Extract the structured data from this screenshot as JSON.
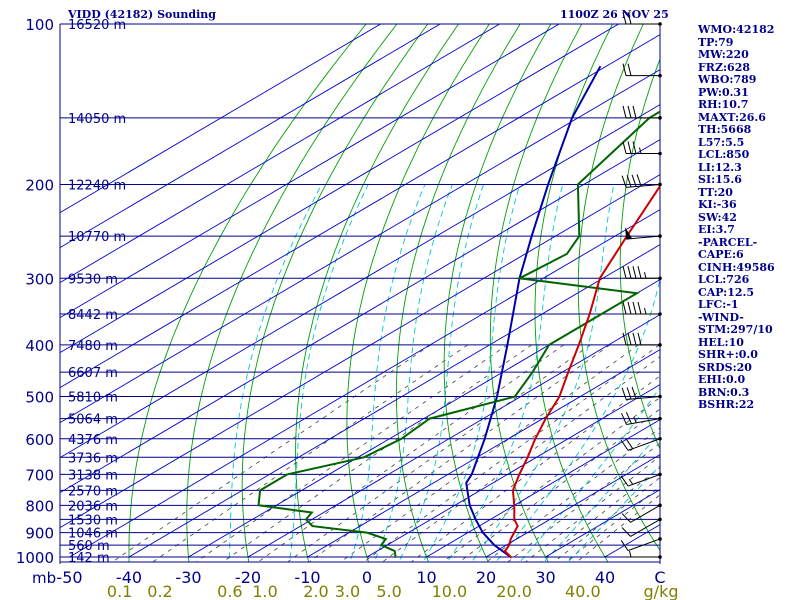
{
  "header": {
    "station_title": "VIDD (42182) Sounding",
    "valid_time": "1100Z 26 NOV 25"
  },
  "indices": [
    "WMO:42182",
    "TP:79",
    "MW:220",
    "FRZ:628",
    "WBO:789",
    "PW:0.31",
    "RH:10.7",
    "MAXT:26.6",
    "TH:5668",
    "L57:5.5",
    "LCL:850",
    "LI:12.3",
    "SI:15.6",
    "TT:20",
    "KI:-36",
    "SW:42",
    "EI:3.7",
    "-PARCEL-",
    "CAPE:6",
    "CINH:49586",
    "LCL:726",
    "CAP:12.5",
    "LFC:-1",
    "-WIND-",
    "STM:297/10",
    "HEL:10",
    "SHR+:0.0",
    "SRDS:20",
    "EHI:0.0",
    "BRN:0.3",
    "BSHR:22"
  ],
  "colors": {
    "isobar": "#00008b",
    "isotherm": "#0000cd",
    "dry_adiabat": "#00a000",
    "moist_adiabat": "#00c8c8",
    "mixing_ratio": "#404040",
    "temperature": "#cc0000",
    "dewpoint": "#006400",
    "parcel": "#0000aa",
    "text": "#00008b",
    "mixing_label": "#808000"
  },
  "chart_data": {
    "type": "skew-t",
    "pressure_levels": [
      100,
      200,
      300,
      400,
      500,
      600,
      700,
      800,
      900,
      1000
    ],
    "pressure_labels": [
      "100",
      "200",
      "300",
      "400",
      "500",
      "600",
      "700",
      "800",
      "900",
      "1000"
    ],
    "pressure_unit": "mb",
    "x_ticks": [
      "-50",
      "-40",
      "-30",
      "-20",
      "-10",
      "0",
      "10",
      "20",
      "30",
      "40",
      "C"
    ],
    "mixing_ratio_unit": "g/kg",
    "mixing_ratio_labels": [
      {
        "text": "0.1",
        "value": 0.1
      },
      {
        "text": "0.2",
        "value": 0.2
      },
      {
        "text": "0.6",
        "value": 0.6
      },
      {
        "text": "1.0",
        "value": 1.0
      },
      {
        "text": "2.0",
        "value": 2.0
      },
      {
        "text": "3.0",
        "value": 3.0
      },
      {
        "text": "5.0",
        "value": 5.0
      },
      {
        "text": "10.0",
        "value": 10.0
      },
      {
        "text": "20.0",
        "value": 20.0
      },
      {
        "text": "40.0",
        "value": 40.0
      }
    ],
    "height_labels": [
      {
        "p": 100,
        "text": "16520 m"
      },
      {
        "p": 150,
        "text": "14050 m"
      },
      {
        "p": 200,
        "text": "12240 m"
      },
      {
        "p": 250,
        "text": "10770 m"
      },
      {
        "p": 300,
        "text": "9530 m"
      },
      {
        "p": 350,
        "text": "8442 m"
      },
      {
        "p": 400,
        "text": "7480 m"
      },
      {
        "p": 450,
        "text": "6607 m"
      },
      {
        "p": 500,
        "text": "5810 m"
      },
      {
        "p": 550,
        "text": "5064 m"
      },
      {
        "p": 600,
        "text": "4376 m"
      },
      {
        "p": 650,
        "text": "3736 m"
      },
      {
        "p": 700,
        "text": "3138 m"
      },
      {
        "p": 750,
        "text": "2570 m"
      },
      {
        "p": 800,
        "text": "2036 m"
      },
      {
        "p": 850,
        "text": "1530 m"
      },
      {
        "p": 900,
        "text": "1046 m"
      },
      {
        "p": 950,
        "text": "560 m"
      },
      {
        "p": 1000,
        "text": "142 m"
      }
    ],
    "temperature": [
      {
        "p": 1003,
        "t": 24.5
      },
      {
        "p": 975,
        "t": 21.5
      },
      {
        "p": 950,
        "t": 20.5
      },
      {
        "p": 925,
        "t": 19.0
      },
      {
        "p": 875,
        "t": 16.5
      },
      {
        "p": 850,
        "t": 14.0
      },
      {
        "p": 800,
        "t": 10.0
      },
      {
        "p": 750,
        "t": 5.5
      },
      {
        "p": 700,
        "t": 2.0
      },
      {
        "p": 650,
        "t": -1.5
      },
      {
        "p": 600,
        "t": -5.5
      },
      {
        "p": 550,
        "t": -9.5
      },
      {
        "p": 500,
        "t": -13.5
      },
      {
        "p": 450,
        "t": -19.0
      },
      {
        "p": 400,
        "t": -25.0
      },
      {
        "p": 350,
        "t": -32.0
      },
      {
        "p": 300,
        "t": -40.5
      },
      {
        "p": 250,
        "t": -48.0
      },
      {
        "p": 200,
        "t": -57.0
      },
      {
        "p": 150,
        "t": -63.0
      },
      {
        "p": 100,
        "t": -72.0
      }
    ],
    "dewpoint": [
      {
        "p": 1003,
        "t": 5.0
      },
      {
        "p": 975,
        "t": 3.0
      },
      {
        "p": 950,
        "t": -1.0
      },
      {
        "p": 925,
        "t": -2.0
      },
      {
        "p": 900,
        "t": -7.0
      },
      {
        "p": 875,
        "t": -18.0
      },
      {
        "p": 850,
        "t": -21.0
      },
      {
        "p": 825,
        "t": -22.0
      },
      {
        "p": 800,
        "t": -33.0
      },
      {
        "p": 750,
        "t": -37.0
      },
      {
        "p": 700,
        "t": -37.0
      },
      {
        "p": 650,
        "t": -29.0
      },
      {
        "p": 600,
        "t": -28.0
      },
      {
        "p": 550,
        "t": -29.0
      },
      {
        "p": 500,
        "t": -21.0
      },
      {
        "p": 450,
        "t": -25.0
      },
      {
        "p": 400,
        "t": -30.0
      },
      {
        "p": 350,
        "t": -30.0
      },
      {
        "p": 320,
        "t": -30.0
      },
      {
        "p": 300,
        "t": -54.0
      },
      {
        "p": 270,
        "t": -53.0
      },
      {
        "p": 250,
        "t": -56.0
      },
      {
        "p": 200,
        "t": -71.0
      },
      {
        "p": 150,
        "t": -78.0
      },
      {
        "p": 100,
        "t": -78.5
      }
    ],
    "parcel": [
      {
        "p": 1003,
        "t": 24.5
      },
      {
        "p": 950,
        "t": 18.0
      },
      {
        "p": 900,
        "t": 12.5
      },
      {
        "p": 850,
        "t": 7.5
      },
      {
        "p": 800,
        "t": 2.5
      },
      {
        "p": 726,
        "t": -4.5
      },
      {
        "p": 700,
        "t": -6.0
      },
      {
        "p": 600,
        "t": -14.0
      },
      {
        "p": 500,
        "t": -24.0
      },
      {
        "p": 400,
        "t": -37.0
      },
      {
        "p": 300,
        "t": -54.0
      },
      {
        "p": 250,
        "t": -64.0
      },
      {
        "p": 200,
        "t": -76.0
      },
      {
        "p": 150,
        "t": -91.0
      },
      {
        "p": 120,
        "t": -101.0
      }
    ],
    "wind_profile": [
      {
        "p": 1000,
        "dir": 270,
        "spd": 5
      },
      {
        "p": 925,
        "dir": 250,
        "spd": 10
      },
      {
        "p": 850,
        "dir": 240,
        "spd": 10
      },
      {
        "p": 800,
        "dir": 240,
        "spd": 10
      },
      {
        "p": 700,
        "dir": 250,
        "spd": 15
      },
      {
        "p": 600,
        "dir": 250,
        "spd": 20
      },
      {
        "p": 550,
        "dir": 260,
        "spd": 25
      },
      {
        "p": 500,
        "dir": 265,
        "spd": 30
      },
      {
        "p": 400,
        "dir": 270,
        "spd": 40
      },
      {
        "p": 350,
        "dir": 270,
        "spd": 45
      },
      {
        "p": 300,
        "dir": 270,
        "spd": 45
      },
      {
        "p": 250,
        "dir": 265,
        "spd": 50
      },
      {
        "p": 200,
        "dir": 265,
        "spd": 40
      },
      {
        "p": 175,
        "dir": 270,
        "spd": 35
      },
      {
        "p": 150,
        "dir": 270,
        "spd": 30
      },
      {
        "p": 125,
        "dir": 270,
        "spd": 20
      },
      {
        "p": 100,
        "dir": 270,
        "spd": 20
      }
    ]
  }
}
